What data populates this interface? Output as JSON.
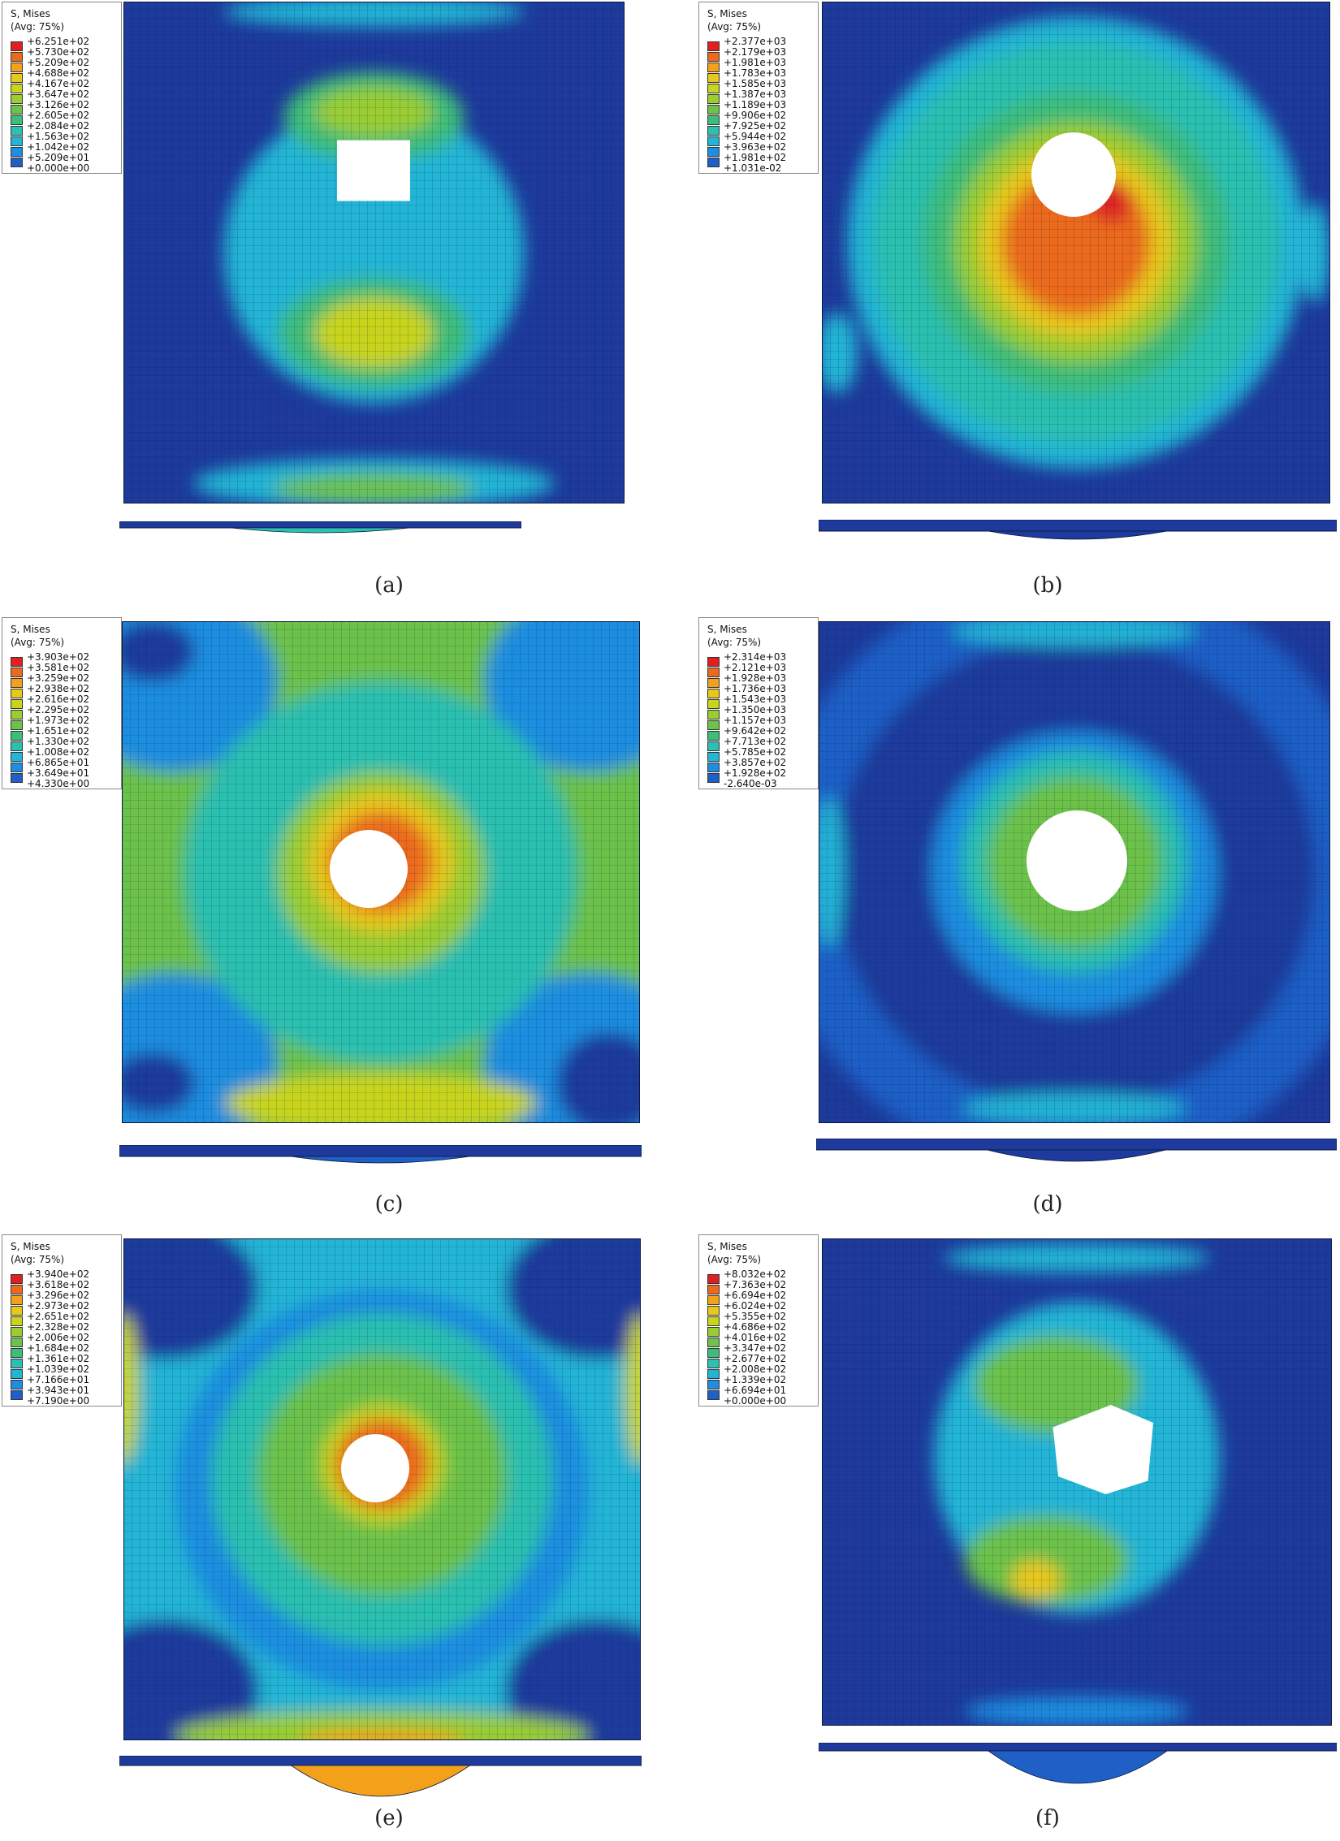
{
  "palette": [
    "#1d3a9c",
    "#1f5fc6",
    "#1f8ee0",
    "#23b5d6",
    "#2cc0b0",
    "#3ebd7a",
    "#6cc24a",
    "#9acd32",
    "#c8d41e",
    "#e8c81c",
    "#f3a11a",
    "#ec6a1e",
    "#e02020"
  ],
  "panels": [
    {
      "id": "a",
      "caption": "(a)",
      "legend_title": "S, Mises",
      "legend_avg": "(Avg: 75%)",
      "legend_values": [
        "+6.251e+02",
        "+5.730e+02",
        "+5.209e+02",
        "+4.688e+02",
        "+4.167e+02",
        "+3.647e+02",
        "+3.126e+02",
        "+2.605e+02",
        "+2.084e+02",
        "+1.563e+02",
        "+1.042e+02",
        "+5.209e+01",
        "+0.000e+00"
      ]
    },
    {
      "id": "b",
      "caption": "(b)",
      "legend_title": "S, Mises",
      "legend_avg": "(Avg: 75%)",
      "legend_values": [
        "+2.377e+03",
        "+2.179e+03",
        "+1.981e+03",
        "+1.783e+03",
        "+1.585e+03",
        "+1.387e+03",
        "+1.189e+03",
        "+9.906e+02",
        "+7.925e+02",
        "+5.944e+02",
        "+3.963e+02",
        "+1.981e+02",
        "+1.031e-02"
      ]
    },
    {
      "id": "c",
      "caption": "(c)",
      "legend_title": "S, Mises",
      "legend_avg": "(Avg: 75%)",
      "legend_values": [
        "+3.903e+02",
        "+3.581e+02",
        "+3.259e+02",
        "+2.938e+02",
        "+2.616e+02",
        "+2.295e+02",
        "+1.973e+02",
        "+1.651e+02",
        "+1.330e+02",
        "+1.008e+02",
        "+6.865e+01",
        "+3.649e+01",
        "+4.330e+00"
      ]
    },
    {
      "id": "d",
      "caption": "(d)",
      "legend_title": "S, Mises",
      "legend_avg": "(Avg: 75%)",
      "legend_values": [
        "+2.314e+03",
        "+2.121e+03",
        "+1.928e+03",
        "+1.736e+03",
        "+1.543e+03",
        "+1.350e+03",
        "+1.157e+03",
        "+9.642e+02",
        "+7.713e+02",
        "+5.785e+02",
        "+3.857e+02",
        "+1.928e+02",
        "-2.640e-03"
      ]
    },
    {
      "id": "e",
      "caption": "(e)",
      "legend_title": "S, Mises",
      "legend_avg": "(Avg: 75%)",
      "legend_values": [
        "+3.940e+02",
        "+3.618e+02",
        "+3.296e+02",
        "+2.973e+02",
        "+2.651e+02",
        "+2.328e+02",
        "+2.006e+02",
        "+1.684e+02",
        "+1.361e+02",
        "+1.039e+02",
        "+7.166e+01",
        "+3.943e+01",
        "+7.190e+00"
      ]
    },
    {
      "id": "f",
      "caption": "(f)",
      "legend_title": "S, Mises",
      "legend_avg": "(Avg: 75%)",
      "legend_values": [
        "+8.032e+02",
        "+7.363e+02",
        "+6.694e+02",
        "+6.024e+02",
        "+5.355e+02",
        "+4.686e+02",
        "+4.016e+02",
        "+3.347e+02",
        "+2.677e+02",
        "+2.008e+02",
        "+1.339e+02",
        "+6.694e+01",
        "+0.000e+00"
      ]
    }
  ]
}
